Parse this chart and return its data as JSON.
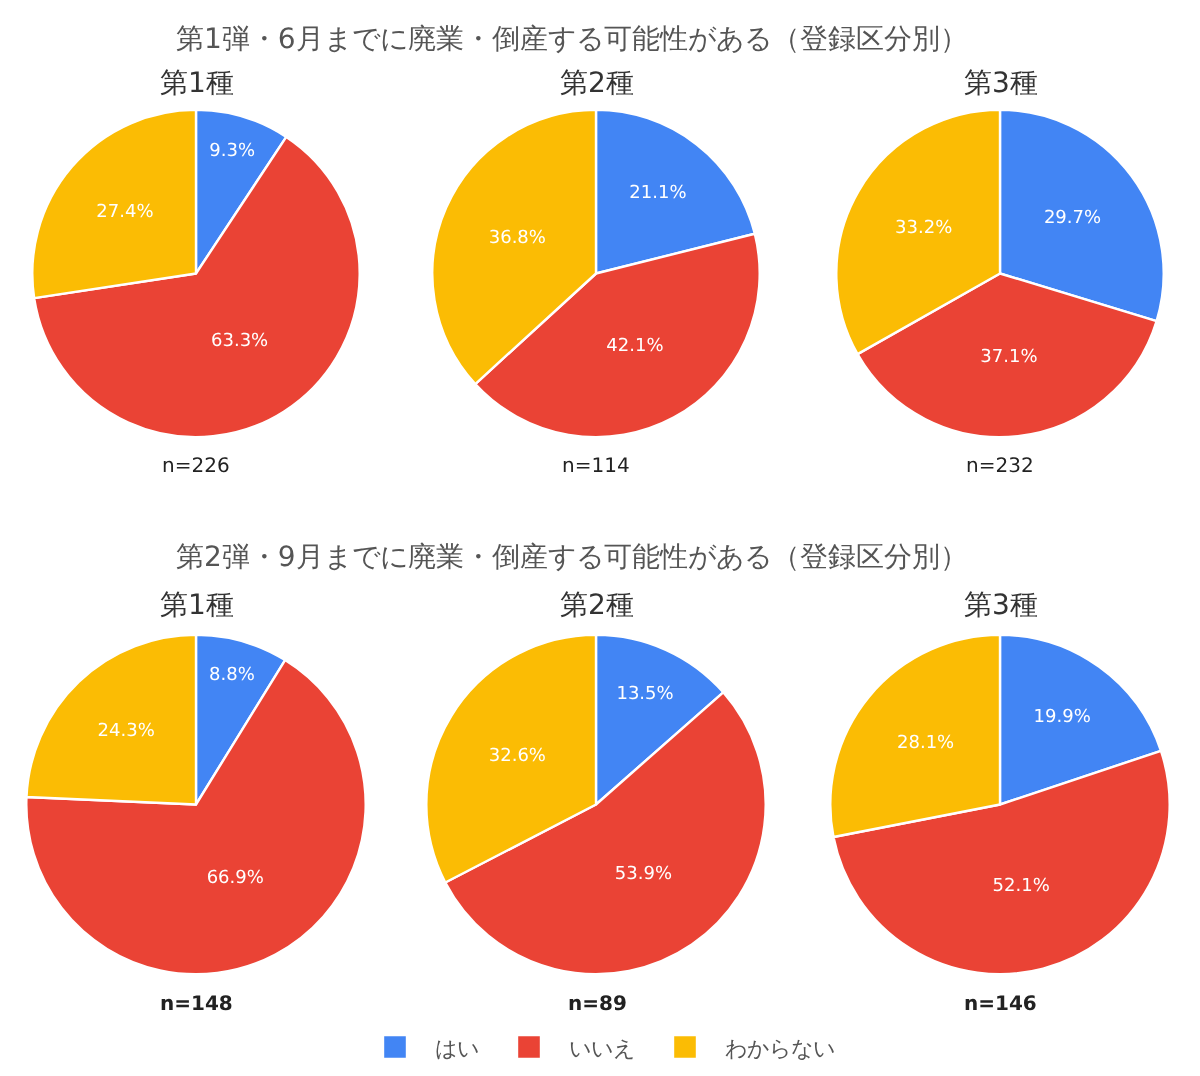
{
  "chart_data": {
    "type": "pie",
    "title": "第1弾・6月までに廃業・倒産する可能性がある（登録区分別）",
    "subtitle": "第2弾・9月までに廃業・倒産する可能性がある（登録区分別）",
    "categories": [
      "はい",
      "いいえ",
      "わからない"
    ],
    "colors": [
      "#4285f4",
      "#ea4335",
      "#fbbc04"
    ],
    "legend": "bottom",
    "series": [
      {
        "name": "第1種",
        "values": [
          9.3,
          63.3,
          27.4
        ],
        "value_labels": [
          "9.3%",
          "63.3%",
          "27.4%"
        ]
      },
      {
        "name": "第2種",
        "values": [
          21.1,
          42.1,
          36.8
        ],
        "value_labels": [
          "21.1%",
          "42.1%",
          "36.8%"
        ]
      },
      {
        "name": "第3種",
        "values": [
          29.7,
          37.1,
          33.2
        ],
        "value_labels": [
          "29.7%",
          "37.1%",
          "33.2%"
        ]
      },
      {
        "name": "第1種",
        "values": [
          8.8,
          66.9,
          24.3
        ],
        "value_labels": [
          "8.8%",
          "66.9%",
          "24.3%"
        ]
      },
      {
        "name": "第2種",
        "values": [
          13.5,
          53.9,
          32.6
        ],
        "value_labels": [
          "13.5%",
          "53.9%",
          "32.6%"
        ]
      },
      {
        "name": "第3種",
        "values": [
          19.9,
          52.1,
          28.1
        ],
        "value_labels": [
          "19.9%",
          "52.1%",
          "28.1%"
        ]
      }
    ],
    "annotations": [
      "n=226",
      "n=114",
      "n=232",
      "n=148",
      "n=89",
      "n=146"
    ]
  }
}
